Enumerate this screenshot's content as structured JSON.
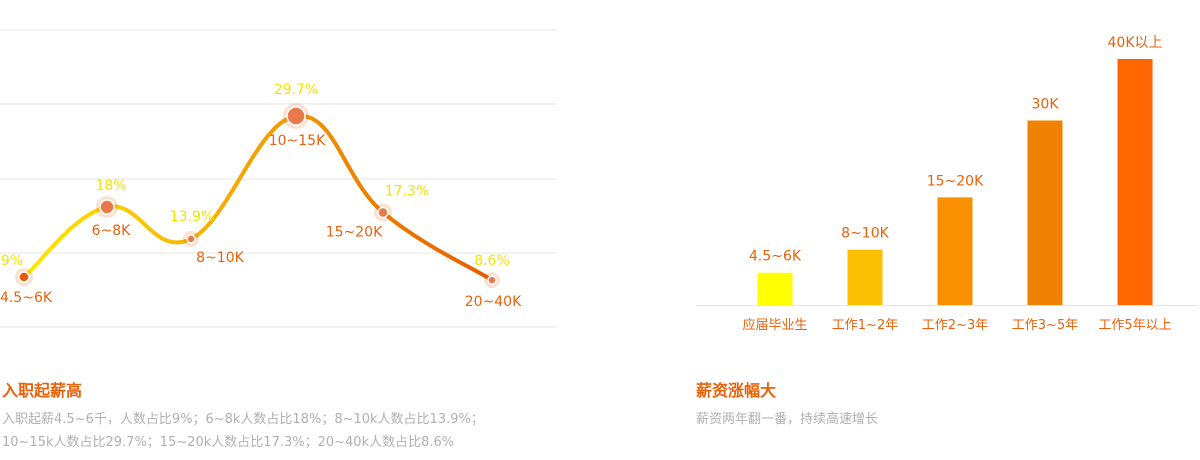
{
  "chart_data": [
    {
      "type": "line",
      "title": "入职起薪高",
      "description": "入职起薪4.5~6千，人数占比9%；6~8k人数占比18%；8~10k人数占比13.9%；10~15k人数占比29.7%；15~20k人数占比17.3%；20~40k人数占比8.6%",
      "categories": [
        "4.5~6K",
        "6~8K",
        "8~10K",
        "10~15K",
        "15~20K",
        "20~40K"
      ],
      "values": [
        9,
        18,
        13.9,
        29.7,
        17.3,
        8.6
      ],
      "value_labels": [
        "9%",
        "18%",
        "13.9%",
        "29.7%",
        "17.3%",
        "8.6%"
      ],
      "grid": true,
      "colors": {
        "start": "#ffe800",
        "end": "#e85a00",
        "percent_text": "#f3e400",
        "salary_text": "#e8620b",
        "grid": "#e6e6e6"
      }
    },
    {
      "type": "bar",
      "title": "薪资涨幅大",
      "description": "薪资两年翻一番，持续高速增长",
      "categories": [
        "应届毕业生",
        "工作1~2年",
        "工作2~3年",
        "工作3~5年",
        "工作5年以上"
      ],
      "value_labels": [
        "4.5~6K",
        "8~10K",
        "15~20K",
        "30K",
        "40K以上"
      ],
      "values": [
        5.25,
        9,
        17.5,
        30,
        40
      ],
      "colors": [
        "#ffff00",
        "#fac000",
        "#f89000",
        "#ef8200",
        "#ff6600"
      ]
    }
  ]
}
